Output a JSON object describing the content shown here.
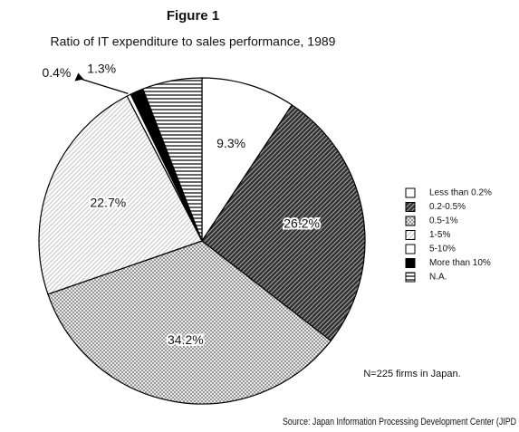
{
  "chart_data": {
    "type": "pie",
    "title": "Figure 1",
    "subtitle": "Ratio of IT expenditure to sales performance, 1989",
    "categories": [
      "Less than 0.2%",
      "0.2-0.5%",
      "0.5-1%",
      "1-5%",
      "5-10%",
      "More than 10%",
      "N.A."
    ],
    "values": [
      9.3,
      26.2,
      34.2,
      22.7,
      0.4,
      1.3,
      5.9
    ],
    "value_labels": [
      "9.3%",
      "26.2%",
      "34.2%",
      "22.7%",
      "0.4%",
      "1.3%",
      null
    ],
    "colors": [
      "#ffffff",
      "#333333",
      "#999999",
      "#cccccc",
      "#ffffff",
      "#000000",
      "#666666"
    ],
    "patterns": [
      "none",
      "diagonal",
      "dots",
      "diagonal",
      "none",
      "none",
      "horizontal"
    ],
    "note": "N=225 firms in Japan.",
    "source": "Source: Japan Information Processing Development Center (JIPD"
  }
}
